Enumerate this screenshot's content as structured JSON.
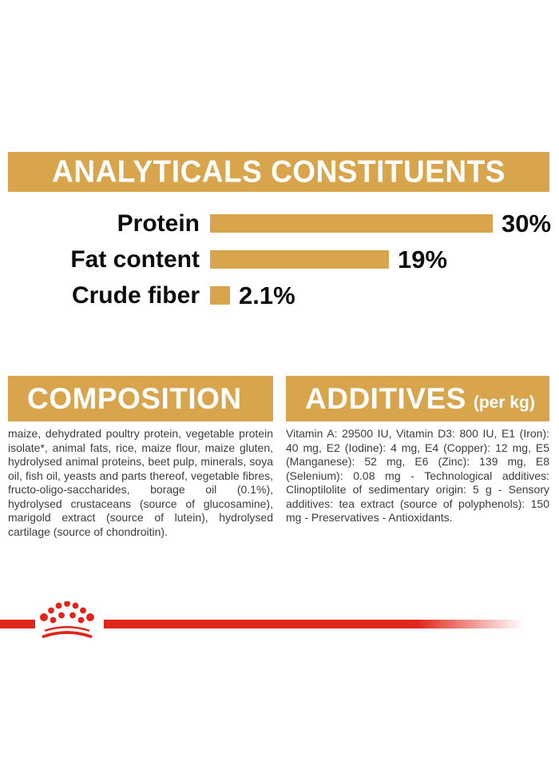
{
  "colors": {
    "gold": "#D8A44C",
    "red": "#E0251B",
    "body_text": "#3C3C3B",
    "label_black": "#0D0D0D"
  },
  "analyticals": {
    "title": "ANALYTICALS CONSTITUENTS"
  },
  "chart_data": {
    "type": "bar",
    "orientation": "horizontal",
    "title": "ANALYTICALS CONSTITUENTS",
    "categories": [
      "Protein",
      "Fat content",
      "Crude fiber"
    ],
    "values": [
      30,
      19,
      2.1
    ],
    "value_labels": [
      "30%",
      "19%",
      "2.1%"
    ],
    "unit": "%",
    "xlim": [
      0,
      32
    ],
    "bar_color": "#D8A44C",
    "grid": false,
    "legend": "none"
  },
  "composition": {
    "title": "COMPOSITION",
    "body": "maize, dehydrated poultry protein, vegetable protein isolate*, animal fats, rice, maize flour, maize gluten, hydrolysed animal proteins, beet pulp, minerals, soya oil, fish oil, yeasts and parts thereof, vegetable fibres, fructo-oligo-saccharides, borage oil (0.1%), hydrolysed crustaceans (source of glucosamine), marigold extract (source of lutein), hydrolysed cartilage (source of chondroitin)."
  },
  "additives": {
    "title": "ADDITIVES",
    "title_suffix": "(per kg)",
    "body": "Vitamin A: 29500 IU, Vitamin D3: 800 IU, E1 (Iron): 40 mg, E2 (Iodine): 4 mg, E4 (Copper): 12 mg, E5 (Manganese): 52 mg, E6 (Zinc): 139 mg, E8 (Selenium): 0.08 mg - Technological additives: Clinoptilolite of sedimentary origin: 5 g - Sensory additives: tea extract (source of polyphenols): 150 mg - Preservatives - Antioxidants."
  },
  "footer": {
    "logo_name": "royal-canin-crown"
  }
}
